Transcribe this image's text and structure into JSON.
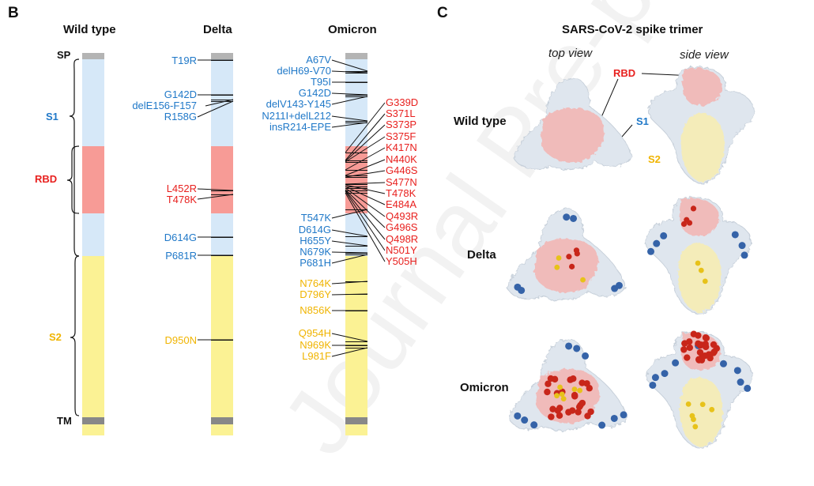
{
  "panel_b": {
    "letter": "B",
    "columns": [
      {
        "title": "Wild type"
      },
      {
        "title": "Delta"
      },
      {
        "title": "Omicron"
      }
    ],
    "domains": {
      "sp": {
        "label": "SP",
        "color": "#111111"
      },
      "s1": {
        "label": "S1",
        "color": "#1f78c8"
      },
      "rbd": {
        "label": "RBD",
        "color": "#e8201e"
      },
      "s2": {
        "label": "S2",
        "color": "#f0b400"
      },
      "tm": {
        "label": "TM",
        "color": "#111111"
      }
    },
    "segment_colors": {
      "sp": "#b4b4b4",
      "s1": "#d6e8f8",
      "rbd": "#f79b96",
      "s2": "#fbf294",
      "tm": "#888888"
    },
    "delta_mutations": [
      {
        "label": "T19R",
        "color": "#1f78c8"
      },
      {
        "label": "G142D",
        "color": "#1f78c8"
      },
      {
        "label": "delE156-F157",
        "color": "#1f78c8"
      },
      {
        "label": "R158G",
        "color": "#1f78c8"
      },
      {
        "label": "L452R",
        "color": "#e8201e"
      },
      {
        "label": "T478K",
        "color": "#e8201e"
      },
      {
        "label": "D614G",
        "color": "#1f78c8"
      },
      {
        "label": "P681R",
        "color": "#1f78c8"
      },
      {
        "label": "D950N",
        "color": "#f0b400"
      }
    ],
    "omicron_left_mutations": [
      {
        "label": "A67V",
        "color": "#1f78c8"
      },
      {
        "label": "delH69-V70",
        "color": "#1f78c8"
      },
      {
        "label": "T95I",
        "color": "#1f78c8"
      },
      {
        "label": "G142D",
        "color": "#1f78c8"
      },
      {
        "label": "delV143-Y145",
        "color": "#1f78c8"
      },
      {
        "label": "N211I+delL212",
        "color": "#1f78c8"
      },
      {
        "label": "insR214-EPE",
        "color": "#1f78c8"
      },
      {
        "label": "T547K",
        "color": "#1f78c8"
      },
      {
        "label": "D614G",
        "color": "#1f78c8"
      },
      {
        "label": "H655Y",
        "color": "#1f78c8"
      },
      {
        "label": "N679K",
        "color": "#1f78c8"
      },
      {
        "label": "P681H",
        "color": "#1f78c8"
      },
      {
        "label": "N764K",
        "color": "#f0b400"
      },
      {
        "label": "D796Y",
        "color": "#f0b400"
      },
      {
        "label": "N856K",
        "color": "#f0b400"
      },
      {
        "label": "Q954H",
        "color": "#f0b400"
      },
      {
        "label": "N969K",
        "color": "#f0b400"
      },
      {
        "label": "L981F",
        "color": "#f0b400"
      }
    ],
    "omicron_rbd_mutations": [
      {
        "label": "G339D",
        "color": "#e8201e"
      },
      {
        "label": "S371L",
        "color": "#e8201e"
      },
      {
        "label": "S373P",
        "color": "#e8201e"
      },
      {
        "label": "S375F",
        "color": "#e8201e"
      },
      {
        "label": "K417N",
        "color": "#e8201e"
      },
      {
        "label": "N440K",
        "color": "#e8201e"
      },
      {
        "label": "G446S",
        "color": "#e8201e"
      },
      {
        "label": "S477N",
        "color": "#e8201e"
      },
      {
        "label": "T478K",
        "color": "#e8201e"
      },
      {
        "label": "E484A",
        "color": "#e8201e"
      },
      {
        "label": "Q493R",
        "color": "#e8201e"
      },
      {
        "label": "G496S",
        "color": "#e8201e"
      },
      {
        "label": "Q498R",
        "color": "#e8201e"
      },
      {
        "label": "N501Y",
        "color": "#e8201e"
      },
      {
        "label": "Y505H",
        "color": "#e8201e"
      }
    ]
  },
  "panel_c": {
    "letter": "C",
    "title": "SARS-CoV-2 spike trimer",
    "views": [
      "top view",
      "side view"
    ],
    "rows": [
      "Wild type",
      "Delta",
      "Omicron"
    ],
    "annotations": {
      "rbd": "RBD",
      "s1": "S1",
      "s2": "S2"
    },
    "colors": {
      "surface": "#dfe6ee",
      "rbd": "#f4b4b2",
      "s2": "#f8eeb0",
      "mut_blue": "#3563a8",
      "mut_red": "#c8261a",
      "mut_yellow": "#e7c21a"
    }
  },
  "watermark": "Journal Pre-proof"
}
